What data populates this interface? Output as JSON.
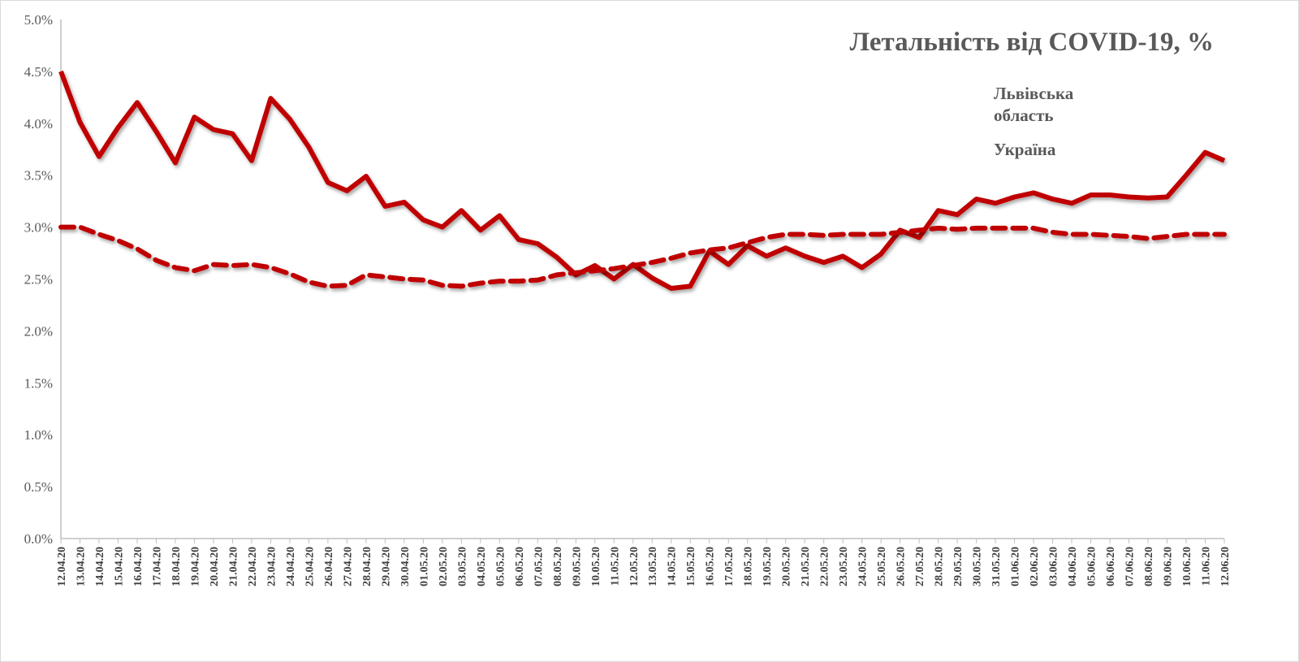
{
  "chart_data": {
    "type": "line",
    "title": "Летальність від COVID-19, %",
    "xlabel": "",
    "ylabel": "",
    "ylim": [
      0,
      5
    ],
    "yticks": [
      "0.0%",
      "0.5%",
      "1.0%",
      "1.5%",
      "2.0%",
      "2.5%",
      "3.0%",
      "3.5%",
      "4.0%",
      "4.5%",
      "5.0%"
    ],
    "grid": false,
    "legend_position": "top-right",
    "categories": [
      "12.04.20",
      "13.04.20",
      "14.04.20",
      "15.04.20",
      "16.04.20",
      "17.04.20",
      "18.04.20",
      "19.04.20",
      "20.04.20",
      "21.04.20",
      "22.04.20",
      "23.04.20",
      "24.04.20",
      "25.04.20",
      "26.04.20",
      "27.04.20",
      "28.04.20",
      "29.04.20",
      "30.04.20",
      "01.05.20",
      "02.05.20",
      "03.05.20",
      "04.05.20",
      "05.05.20",
      "06.05.20",
      "07.05.20",
      "08.05.20",
      "09.05.20",
      "10.05.20",
      "11.05.20",
      "12.05.20",
      "13.05.20",
      "14.05.20",
      "15.05.20",
      "16.05.20",
      "17.05.20",
      "18.05.20",
      "19.05.20",
      "20.05.20",
      "21.05.20",
      "22.05.20",
      "23.05.20",
      "24.05.20",
      "25.05.20",
      "26.05.20",
      "27.05.20",
      "28.05.20",
      "29.05.20",
      "30.05.20",
      "31.05.20",
      "01.06.20",
      "02.06.20",
      "03.06.20",
      "04.06.20",
      "05.06.20",
      "06.06.20",
      "07.06.20",
      "08.06.20",
      "09.06.20",
      "10.06.20",
      "11.06.20",
      "12.06.20"
    ],
    "series": [
      {
        "name": "Львівська область",
        "style": "solid",
        "color": "#c00000",
        "values": [
          4.5,
          4.01,
          3.68,
          3.96,
          4.2,
          3.92,
          3.62,
          4.06,
          3.94,
          3.9,
          3.64,
          4.24,
          4.04,
          3.77,
          3.43,
          3.35,
          3.49,
          3.2,
          3.24,
          3.07,
          3.0,
          3.16,
          2.97,
          3.11,
          2.88,
          2.84,
          2.71,
          2.54,
          2.63,
          2.5,
          2.64,
          2.51,
          2.41,
          2.43,
          2.77,
          2.64,
          2.82,
          2.72,
          2.8,
          2.72,
          2.66,
          2.72,
          2.61,
          2.74,
          2.97,
          2.9,
          3.16,
          3.12,
          3.27,
          3.23,
          3.29,
          3.33,
          3.27,
          3.23,
          3.31,
          3.31,
          3.29,
          3.28,
          3.29,
          3.5,
          3.72,
          3.64
        ]
      },
      {
        "name": "Україна",
        "style": "dashed",
        "color": "#c00000",
        "values": [
          3.0,
          3.0,
          2.93,
          2.87,
          2.79,
          2.68,
          2.61,
          2.58,
          2.64,
          2.63,
          2.64,
          2.61,
          2.55,
          2.47,
          2.43,
          2.44,
          2.54,
          2.52,
          2.5,
          2.49,
          2.44,
          2.43,
          2.46,
          2.48,
          2.48,
          2.49,
          2.54,
          2.56,
          2.58,
          2.6,
          2.63,
          2.66,
          2.7,
          2.75,
          2.78,
          2.8,
          2.85,
          2.9,
          2.93,
          2.93,
          2.92,
          2.93,
          2.93,
          2.93,
          2.95,
          2.97,
          2.99,
          2.98,
          2.99,
          2.99,
          2.99,
          2.99,
          2.95,
          2.93,
          2.93,
          2.92,
          2.91,
          2.89,
          2.91,
          2.93,
          2.93,
          2.93
        ]
      }
    ]
  }
}
